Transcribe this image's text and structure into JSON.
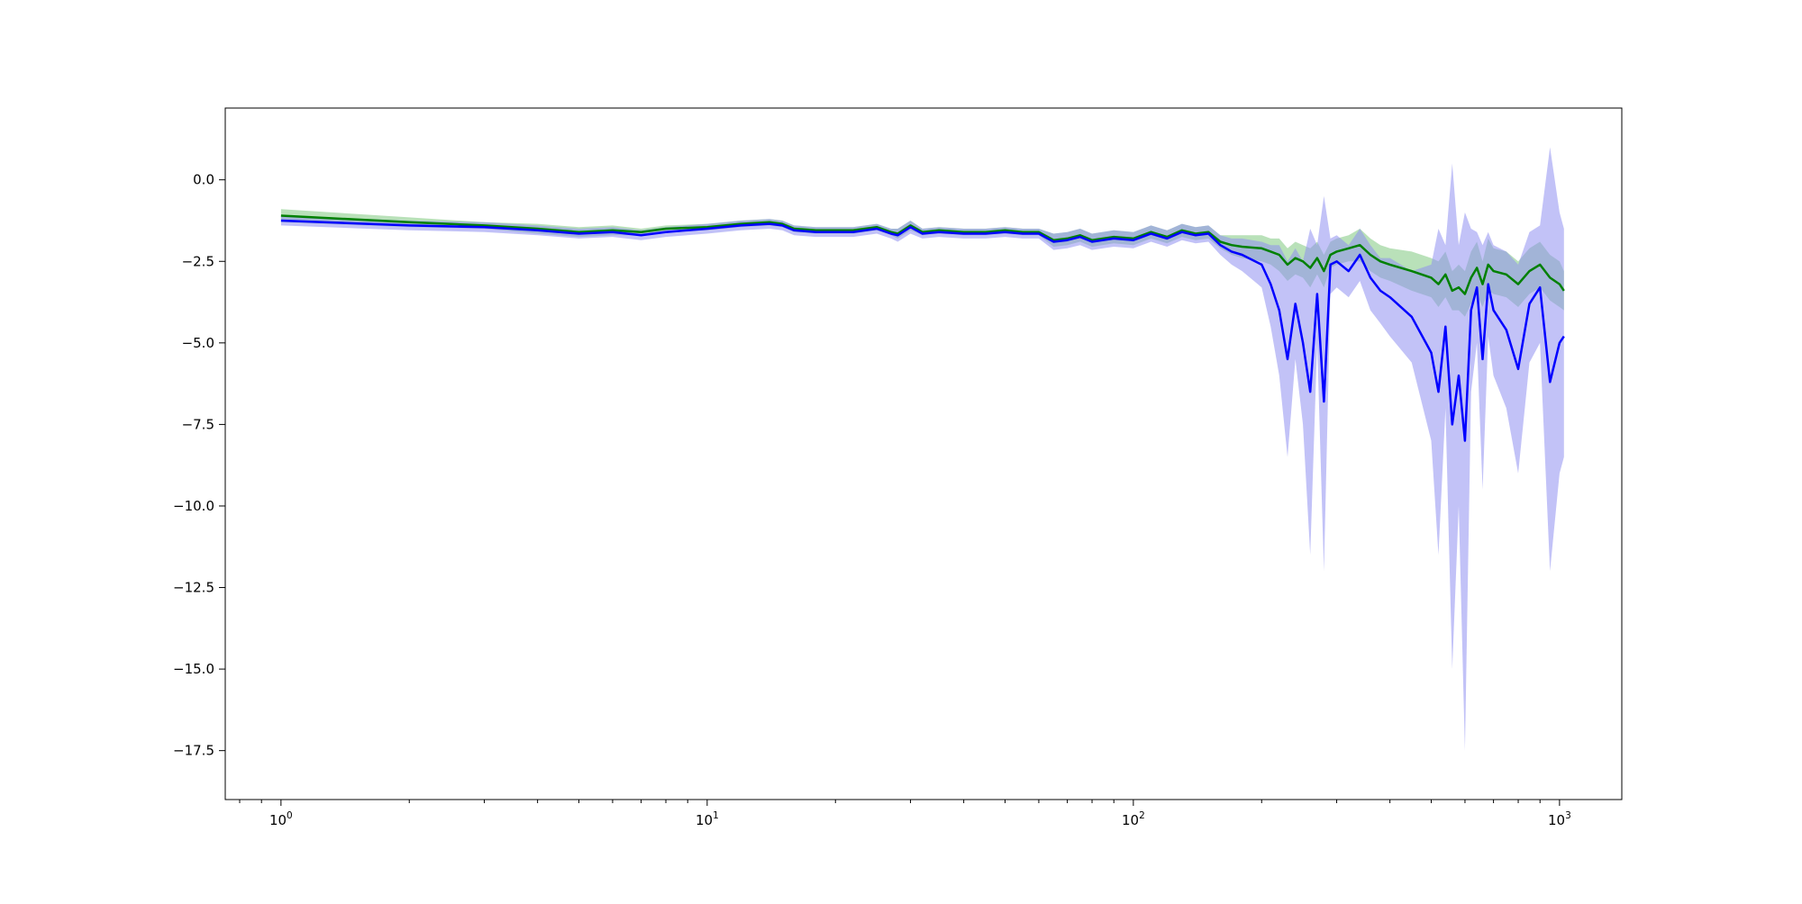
{
  "chart_data": {
    "type": "line",
    "title": "",
    "xlabel": "",
    "ylabel": "",
    "x_scale": "log",
    "xlim": [
      0.74,
      1400
    ],
    "ylim": [
      -19.0,
      2.2
    ],
    "grid": false,
    "legend": "none",
    "x_ticks": [
      {
        "value": 1,
        "base": "10",
        "exp": "0"
      },
      {
        "value": 10,
        "base": "10",
        "exp": "1"
      },
      {
        "value": 100,
        "base": "10",
        "exp": "2"
      },
      {
        "value": 1000,
        "base": "10",
        "exp": "3"
      }
    ],
    "y_ticks": [
      {
        "value": 0.0,
        "label": "0.0"
      },
      {
        "value": -2.5,
        "label": "−2.5"
      },
      {
        "value": -5.0,
        "label": "−5.0"
      },
      {
        "value": -7.5,
        "label": "−7.5"
      },
      {
        "value": -10.0,
        "label": "−10.0"
      },
      {
        "value": -12.5,
        "label": "−12.5"
      },
      {
        "value": -15.0,
        "label": "−15.0"
      },
      {
        "value": -17.5,
        "label": "−17.5"
      }
    ],
    "series": [
      {
        "color": "#008000",
        "band_color": "#7fc97f",
        "x": [
          1,
          2,
          3,
          4,
          5,
          6,
          7,
          8,
          10,
          12,
          14,
          15,
          16,
          18,
          20,
          22,
          25,
          27,
          28,
          30,
          32,
          35,
          40,
          45,
          50,
          55,
          60,
          65,
          70,
          75,
          80,
          90,
          100,
          110,
          120,
          130,
          140,
          150,
          160,
          170,
          180,
          200,
          210,
          220,
          230,
          240,
          250,
          260,
          270,
          280,
          290,
          300,
          320,
          340,
          360,
          380,
          400,
          450,
          500,
          520,
          540,
          560,
          580,
          600,
          620,
          640,
          660,
          680,
          700,
          750,
          800,
          850,
          900,
          950,
          1000,
          1024
        ],
        "y": [
          -1.1,
          -1.3,
          -1.4,
          -1.5,
          -1.6,
          -1.55,
          -1.6,
          -1.5,
          -1.45,
          -1.35,
          -1.3,
          -1.35,
          -1.5,
          -1.55,
          -1.55,
          -1.55,
          -1.45,
          -1.6,
          -1.65,
          -1.4,
          -1.6,
          -1.55,
          -1.6,
          -1.6,
          -1.55,
          -1.6,
          -1.6,
          -1.85,
          -1.8,
          -1.7,
          -1.85,
          -1.75,
          -1.8,
          -1.6,
          -1.75,
          -1.55,
          -1.65,
          -1.6,
          -1.9,
          -2.0,
          -2.05,
          -2.1,
          -2.2,
          -2.3,
          -2.6,
          -2.4,
          -2.5,
          -2.7,
          -2.4,
          -2.8,
          -2.3,
          -2.2,
          -2.1,
          -2.0,
          -2.3,
          -2.5,
          -2.6,
          -2.8,
          -3.0,
          -3.2,
          -2.9,
          -3.4,
          -3.3,
          -3.5,
          -3.0,
          -2.7,
          -3.2,
          -2.6,
          -2.8,
          -2.9,
          -3.2,
          -2.8,
          -2.6,
          -3.0,
          -3.2,
          -3.4
        ],
        "lower": [
          -1.3,
          -1.45,
          -1.5,
          -1.65,
          -1.75,
          -1.7,
          -1.7,
          -1.6,
          -1.55,
          -1.45,
          -1.4,
          -1.45,
          -1.6,
          -1.65,
          -1.65,
          -1.65,
          -1.55,
          -1.7,
          -1.8,
          -1.55,
          -1.7,
          -1.65,
          -1.7,
          -1.7,
          -1.65,
          -1.7,
          -1.7,
          -2.05,
          -2.0,
          -1.9,
          -2.05,
          -1.95,
          -2.0,
          -1.8,
          -1.95,
          -1.75,
          -1.85,
          -1.8,
          -2.1,
          -2.3,
          -2.4,
          -2.5,
          -2.6,
          -2.8,
          -3.1,
          -2.9,
          -3.0,
          -3.3,
          -2.9,
          -3.3,
          -2.7,
          -2.6,
          -2.5,
          -2.5,
          -2.8,
          -3.0,
          -3.1,
          -3.4,
          -3.6,
          -3.9,
          -3.6,
          -4.0,
          -4.0,
          -4.2,
          -3.8,
          -3.5,
          -3.9,
          -3.4,
          -3.5,
          -3.6,
          -3.9,
          -3.5,
          -3.3,
          -3.7,
          -3.9,
          -4.0
        ],
        "upper": [
          -0.9,
          -1.15,
          -1.3,
          -1.35,
          -1.45,
          -1.4,
          -1.5,
          -1.4,
          -1.35,
          -1.25,
          -1.2,
          -1.25,
          -1.4,
          -1.45,
          -1.45,
          -1.45,
          -1.35,
          -1.5,
          -1.5,
          -1.25,
          -1.5,
          -1.45,
          -1.5,
          -1.5,
          -1.45,
          -1.5,
          -1.5,
          -1.65,
          -1.6,
          -1.5,
          -1.65,
          -1.55,
          -1.6,
          -1.4,
          -1.55,
          -1.35,
          -1.45,
          -1.4,
          -1.7,
          -1.7,
          -1.7,
          -1.7,
          -1.8,
          -1.8,
          -2.1,
          -1.9,
          -2.0,
          -2.1,
          -1.9,
          -2.3,
          -1.9,
          -1.8,
          -1.7,
          -1.5,
          -1.8,
          -2.0,
          -2.1,
          -2.2,
          -2.4,
          -2.5,
          -2.2,
          -2.8,
          -2.6,
          -2.8,
          -2.2,
          -1.9,
          -2.5,
          -1.8,
          -2.1,
          -2.2,
          -2.5,
          -2.1,
          -1.9,
          -2.3,
          -2.5,
          -2.8
        ]
      },
      {
        "color": "#0000ff",
        "band_color": "#8f8ff0",
        "x": [
          1,
          2,
          3,
          4,
          5,
          6,
          7,
          8,
          10,
          12,
          14,
          15,
          16,
          18,
          20,
          22,
          25,
          27,
          28,
          30,
          32,
          35,
          40,
          45,
          50,
          55,
          60,
          65,
          70,
          75,
          80,
          90,
          100,
          110,
          120,
          130,
          140,
          150,
          160,
          170,
          180,
          200,
          210,
          220,
          230,
          240,
          250,
          260,
          270,
          280,
          290,
          300,
          320,
          340,
          360,
          380,
          400,
          450,
          500,
          520,
          540,
          560,
          580,
          600,
          620,
          640,
          660,
          680,
          700,
          750,
          800,
          850,
          900,
          950,
          1000,
          1024
        ],
        "y": [
          -1.25,
          -1.4,
          -1.45,
          -1.55,
          -1.65,
          -1.6,
          -1.7,
          -1.6,
          -1.5,
          -1.4,
          -1.35,
          -1.4,
          -1.55,
          -1.6,
          -1.6,
          -1.6,
          -1.5,
          -1.65,
          -1.7,
          -1.45,
          -1.65,
          -1.6,
          -1.65,
          -1.65,
          -1.6,
          -1.65,
          -1.65,
          -1.9,
          -1.85,
          -1.75,
          -1.9,
          -1.8,
          -1.85,
          -1.65,
          -1.8,
          -1.6,
          -1.7,
          -1.65,
          -2.0,
          -2.2,
          -2.3,
          -2.6,
          -3.2,
          -4.0,
          -5.5,
          -3.8,
          -5.0,
          -6.5,
          -3.5,
          -6.8,
          -2.6,
          -2.5,
          -2.8,
          -2.3,
          -3.0,
          -3.4,
          -3.6,
          -4.2,
          -5.3,
          -6.5,
          -4.5,
          -7.5,
          -6.0,
          -8.0,
          -4.0,
          -3.3,
          -5.5,
          -3.2,
          -4.0,
          -4.6,
          -5.8,
          -3.8,
          -3.3,
          -6.2,
          -5.0,
          -4.8
        ],
        "lower": [
          -1.4,
          -1.55,
          -1.6,
          -1.7,
          -1.8,
          -1.75,
          -1.85,
          -1.75,
          -1.65,
          -1.55,
          -1.5,
          -1.55,
          -1.7,
          -1.75,
          -1.75,
          -1.75,
          -1.65,
          -1.8,
          -1.9,
          -1.65,
          -1.8,
          -1.75,
          -1.8,
          -1.8,
          -1.75,
          -1.8,
          -1.8,
          -2.15,
          -2.1,
          -2.0,
          -2.15,
          -2.05,
          -2.1,
          -1.9,
          -2.05,
          -1.85,
          -1.95,
          -1.9,
          -2.3,
          -2.6,
          -2.8,
          -3.3,
          -4.5,
          -6.0,
          -8.5,
          -5.5,
          -7.5,
          -11.5,
          -5.0,
          -12.0,
          -3.5,
          -3.3,
          -3.6,
          -3.1,
          -4.0,
          -4.4,
          -4.8,
          -5.6,
          -8.0,
          -11.5,
          -7.0,
          -15.0,
          -10.0,
          -17.5,
          -6.5,
          -5.0,
          -9.5,
          -4.8,
          -6.0,
          -7.0,
          -9.0,
          -5.6,
          -5.0,
          -12.0,
          -9.0,
          -8.5
        ],
        "upper": [
          -1.1,
          -1.25,
          -1.3,
          -1.4,
          -1.5,
          -1.45,
          -1.55,
          -1.45,
          -1.35,
          -1.25,
          -1.2,
          -1.25,
          -1.4,
          -1.45,
          -1.45,
          -1.45,
          -1.35,
          -1.5,
          -1.5,
          -1.25,
          -1.5,
          -1.45,
          -1.5,
          -1.5,
          -1.45,
          -1.5,
          -1.5,
          -1.65,
          -1.6,
          -1.5,
          -1.65,
          -1.55,
          -1.6,
          -1.4,
          -1.55,
          -1.35,
          -1.45,
          -1.4,
          -1.7,
          -1.8,
          -1.8,
          -1.9,
          -2.0,
          -2.0,
          -2.5,
          -2.1,
          -2.5,
          -1.5,
          -2.0,
          -0.5,
          -1.8,
          -1.7,
          -2.0,
          -1.5,
          -2.0,
          -2.4,
          -2.4,
          -2.8,
          -2.6,
          -1.5,
          -2.0,
          0.5,
          -2.0,
          -1.0,
          -1.5,
          -1.6,
          -2.0,
          -1.6,
          -2.0,
          -2.2,
          -2.6,
          -1.6,
          -1.4,
          1.0,
          -1.0,
          -1.5
        ]
      }
    ]
  }
}
